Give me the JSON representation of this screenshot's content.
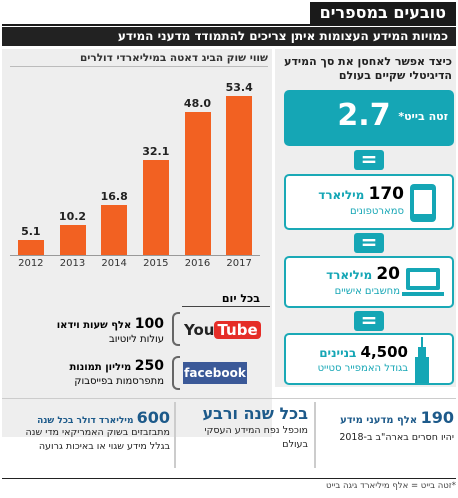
{
  "header": {
    "section_title": "טובעים במספרים",
    "subtitle": "כמויות המידע העצומות איתן צריכים להתמודד מדעני המידע"
  },
  "chart_data": {
    "type": "bar",
    "title": "שווי שוק הביג דאטה במיליארדי דולרים",
    "categories": [
      "2012",
      "2013",
      "2014",
      "2015",
      "2016",
      "2017"
    ],
    "values": [
      5.1,
      10.2,
      16.8,
      32.1,
      48.0,
      53.4
    ],
    "value_labels": [
      "5.1",
      "10.2",
      "16.8",
      "32.1",
      "48.0",
      "53.4"
    ],
    "xlabel": "",
    "ylabel": "",
    "ylim": [
      0,
      60
    ],
    "color": "#f26122",
    "grid": false
  },
  "storage": {
    "question": "כיצד אפשר לאחסן את סך המידע הדיגיטלי שקיים בעולם",
    "total_value": "2.7",
    "total_unit": "זטה בייט*",
    "smartphones_value": "170",
    "smartphones_unit": "מיליארד",
    "smartphones_label": "סמארטפונים",
    "pcs_value": "20",
    "pcs_unit": "מיליארד",
    "pcs_label": "מחשבים אישיים",
    "buildings_value": "4,500",
    "buildings_unit": "בניינים",
    "buildings_label": "בגודל האמפייר סטייט",
    "equals": "="
  },
  "daily": {
    "title": "בכל יום",
    "youtube_logo": "YouTube",
    "youtube_value": "100",
    "youtube_unit": "אלף שעות וידאו",
    "youtube_desc": "עולות ליוטיוב",
    "facebook_logo": "facebook",
    "facebook_value": "250",
    "facebook_unit": "מיליון תמונות",
    "facebook_desc": "מתפרסמות בפייסבוק"
  },
  "bottom": {
    "right_value": "190",
    "right_unit": "אלף מדעני מידע",
    "right_desc": "יהיו חסרים בארה\"ב ב-2018",
    "middle_title": "בכל שנה ורבע",
    "middle_desc": "מוכפל נפח המידע העסקי בעולם",
    "left_value": "600",
    "left_unit": "מיליארד דולר בכל שנה",
    "left_desc": "מתבזבזים בשוק האמריקאי מדי שנה בגלל מידע שגוי או באיכות גרועה"
  },
  "footer": {
    "note": "*זטה בייט = אלף מיליארד גיגה בייט"
  },
  "colors": {
    "orange": "#f26122",
    "teal": "#15a6b5",
    "dark": "#1a1a1a",
    "youtube_red": "#e52d27",
    "facebook_blue": "#3b5998"
  }
}
